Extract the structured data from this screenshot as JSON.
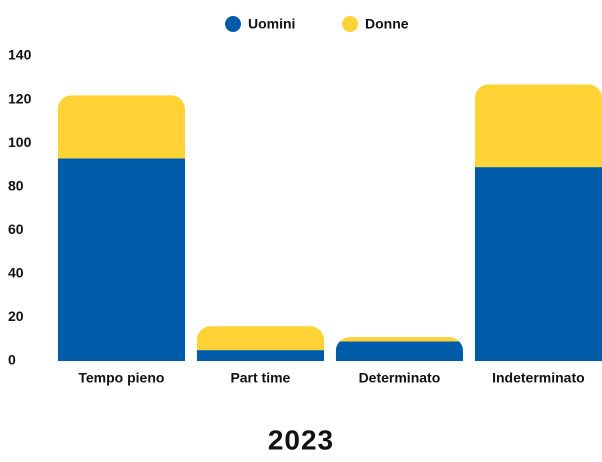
{
  "chart_data": {
    "type": "stacked_bar",
    "title": "2023",
    "categories": [
      "Tempo pieno",
      "Part time",
      "Determinato",
      "Indeterminato"
    ],
    "series": [
      {
        "name": "Uomini",
        "color": "#005ca9",
        "values": [
          93,
          5,
          9,
          89
        ]
      },
      {
        "name": "Donne",
        "color": "#ffd335",
        "values": [
          29,
          11,
          2,
          38
        ]
      }
    ],
    "ylim": [
      0,
      140
    ],
    "yticks": [
      0,
      20,
      40,
      60,
      80,
      100,
      120,
      140
    ],
    "grid": false,
    "legend": "top"
  }
}
